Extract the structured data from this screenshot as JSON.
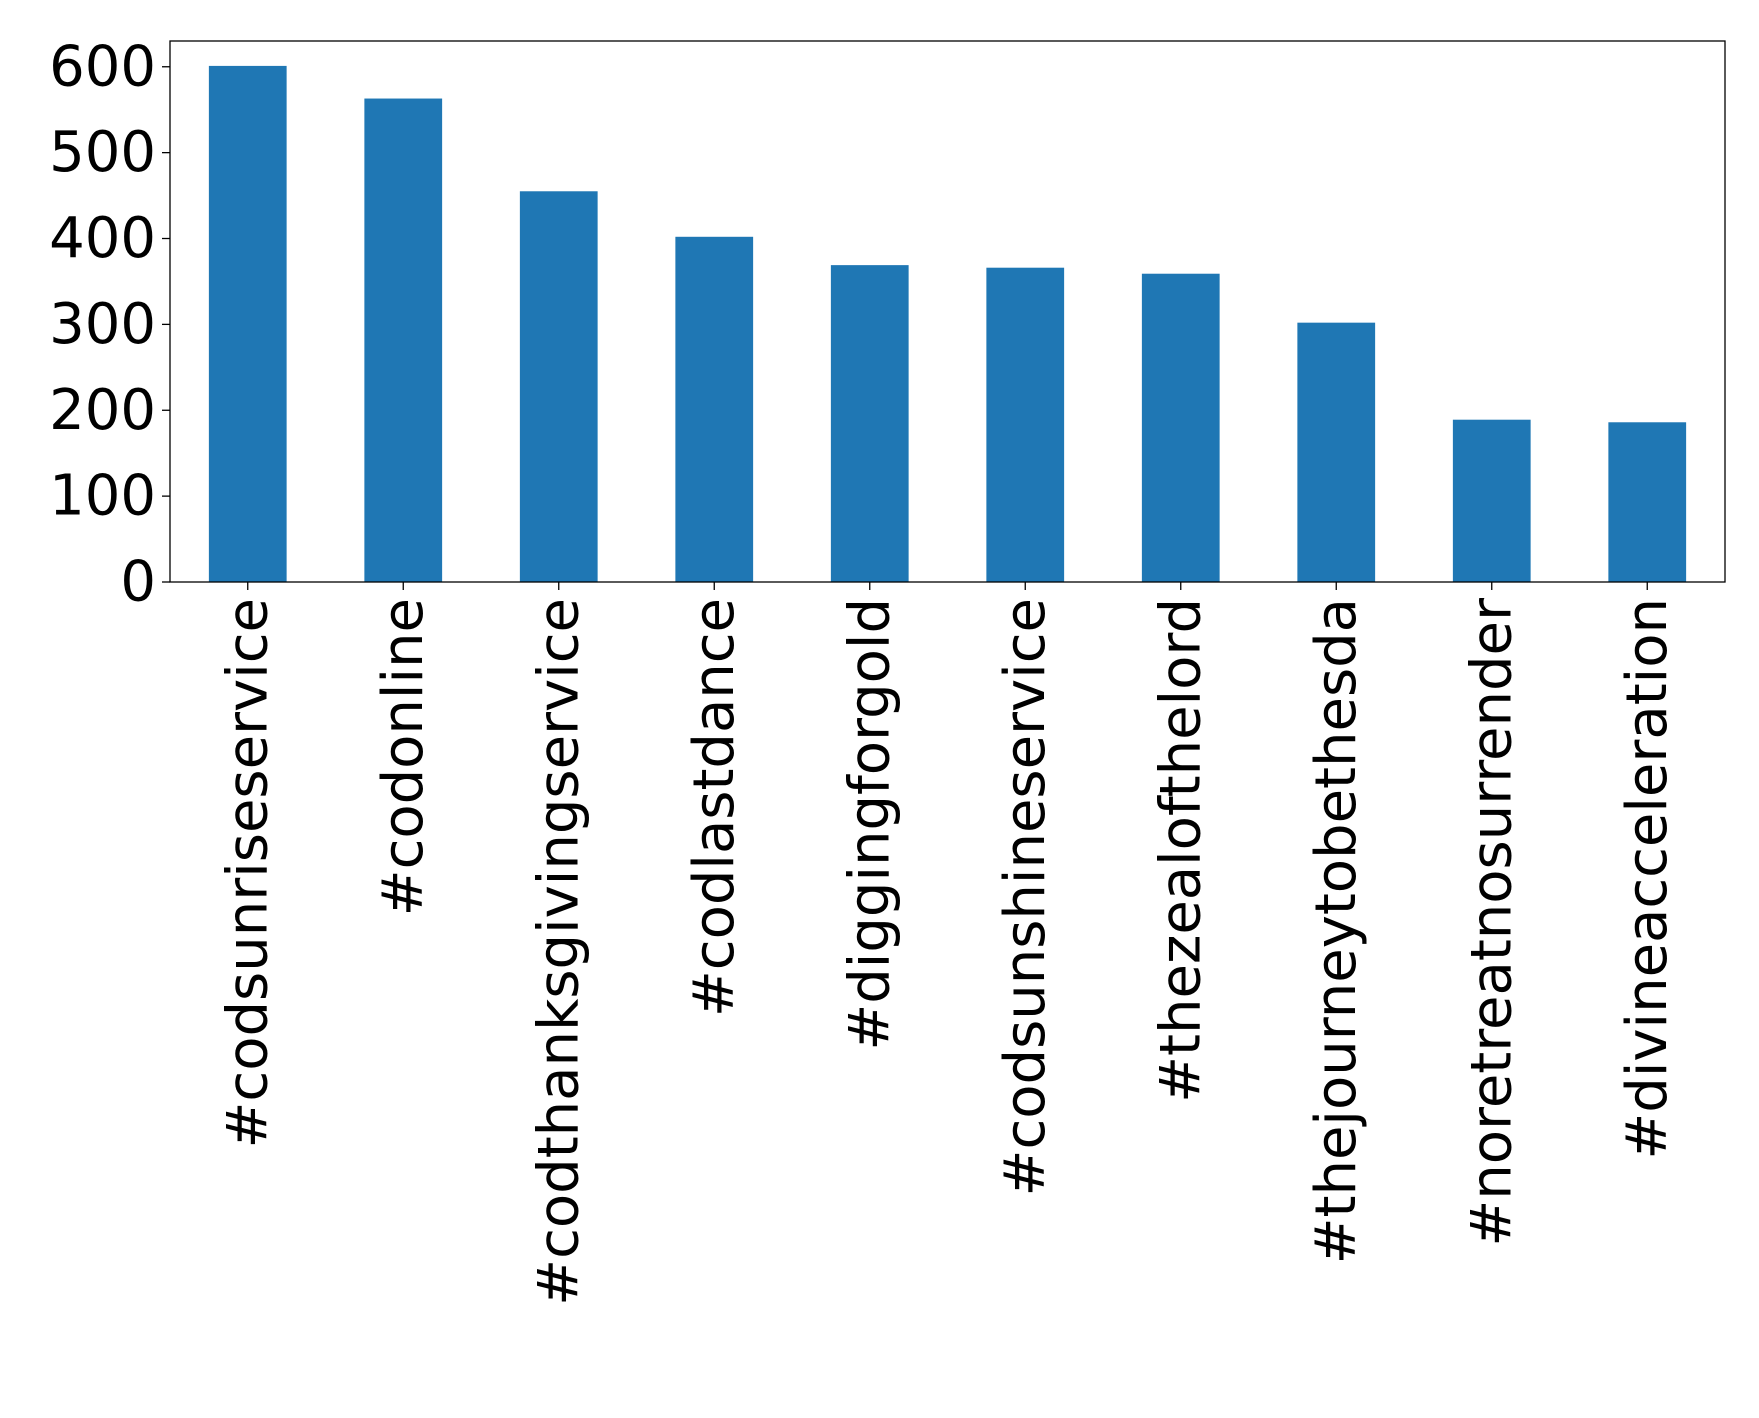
{
  "chart_data": {
    "type": "bar",
    "title": "",
    "xlabel": "",
    "ylabel": "",
    "categories": [
      "#codsunriseservice",
      "#codonline",
      "#codthanksgivingservice",
      "#codlastdance",
      "#diggingforgold",
      "#codsunshineservice",
      "#thezealofthelord",
      "#thejourneytobethesda",
      "#noretreatnosurrender",
      "#divineacceleration"
    ],
    "values": [
      601,
      563,
      455,
      402,
      369,
      366,
      359,
      302,
      189,
      186
    ],
    "ylim": [
      0,
      630
    ],
    "yticks": [
      0,
      100,
      200,
      300,
      400,
      500,
      600
    ],
    "bar_color": "#1f77b4",
    "grid": false,
    "legend": "none"
  }
}
